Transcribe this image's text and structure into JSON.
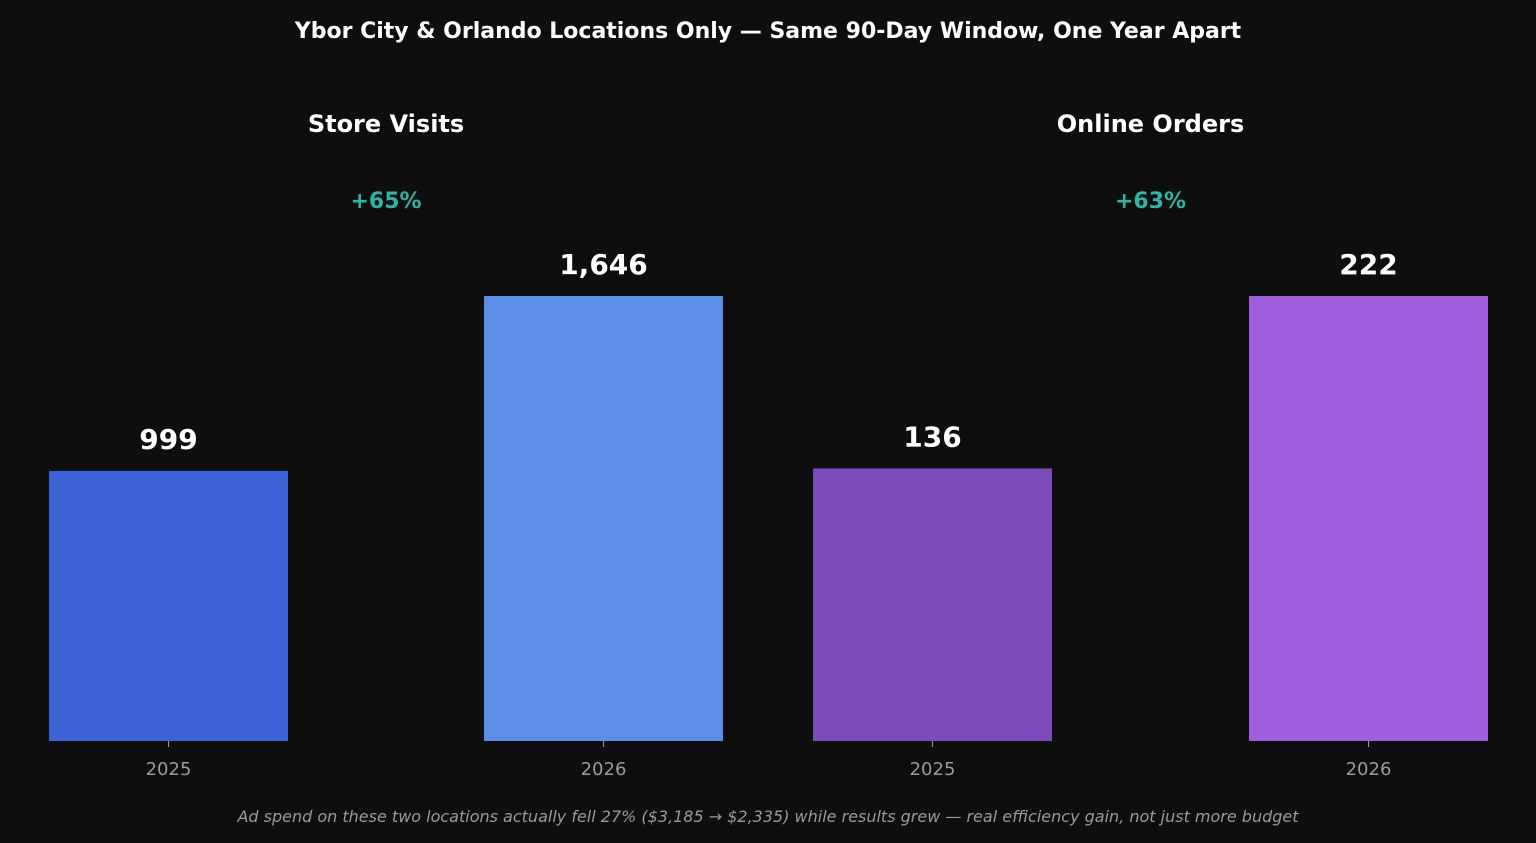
{
  "title": "Ybor City & Orlando Locations Only — Same 90-Day Window, One Year Apart",
  "footnote": "Ad spend on these two locations actually fell 27% ($3,185 → $2,335) while results grew — real efficiency gain, not just more budget",
  "colors": {
    "background": "#0e0e0e",
    "change_label": "#2fb3a3",
    "tick_label": "#9a9a9a"
  },
  "chart_data": [
    {
      "type": "bar",
      "title": "Store Visits",
      "change_label": "+65%",
      "categories": [
        "2025",
        "2026"
      ],
      "values": [
        999,
        1646
      ],
      "value_labels": [
        "999",
        "1,646"
      ],
      "bar_colors": [
        "#3c62d6",
        "#5b8ee6"
      ],
      "xlabel": "",
      "ylabel": "",
      "ylim": [
        0,
        1646
      ],
      "grid": false
    },
    {
      "type": "bar",
      "title": "Online Orders",
      "change_label": "+63%",
      "categories": [
        "2025",
        "2026"
      ],
      "values": [
        136,
        222
      ],
      "value_labels": [
        "136",
        "222"
      ],
      "bar_colors": [
        "#7b4bb9",
        "#a05fdd"
      ],
      "xlabel": "",
      "ylabel": "",
      "ylim": [
        0,
        222
      ],
      "grid": false
    }
  ]
}
